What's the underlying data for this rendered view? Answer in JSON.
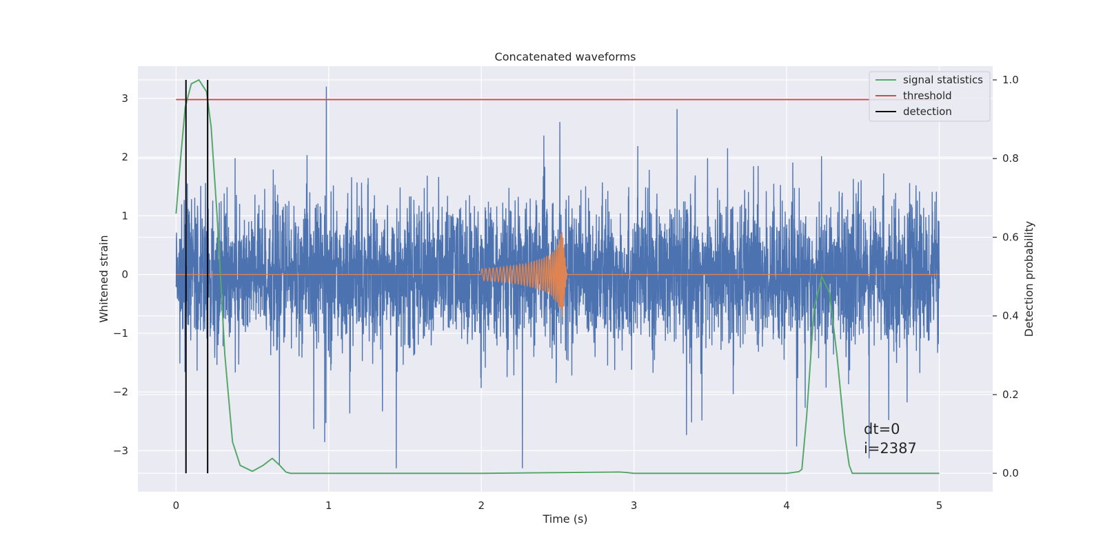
{
  "chart_data": {
    "type": "line",
    "title": "Concatenated waveforms",
    "xlabel": "Time (s)",
    "ylabel": "Whitened strain",
    "y2label": "Detection probability",
    "xlim": [
      -0.25,
      5.35
    ],
    "ylim": [
      -3.7,
      3.55
    ],
    "y2lim": [
      -0.047,
      1.035
    ],
    "x_ticks": [
      0,
      1,
      2,
      3,
      4,
      5
    ],
    "y_ticks": [
      -3,
      -2,
      -1,
      0,
      1,
      2,
      3
    ],
    "y2_ticks": [
      0.0,
      0.2,
      0.4,
      0.6,
      0.8,
      1.0
    ],
    "y_tick_labels": [
      "−3",
      "−2",
      "−1",
      "0",
      "1",
      "2",
      "3"
    ],
    "y2_tick_labels": [
      "0.0",
      "0.2",
      "0.4",
      "0.6",
      "0.8",
      "1.0"
    ],
    "grid": true,
    "legend_position": "top-right",
    "colors": {
      "noise": "#4c72b0",
      "waveform": "#dd8452",
      "signal_statistics": "#55a868",
      "threshold": "#c44e52",
      "detection": "#000000",
      "plot_background": "#eaeaf2",
      "grid": "#ffffff"
    },
    "series": [
      {
        "name": "",
        "kind": "whitened noise",
        "axis": "left",
        "x_range": [
          0,
          5
        ],
        "typical_amplitude": 0.6,
        "envelope": [
          -3.3,
          3.2
        ]
      },
      {
        "name": "",
        "kind": "injected chirp waveform",
        "axis": "left",
        "x": [
          0,
          2.0,
          2.1,
          2.2,
          2.3,
          2.4,
          2.45,
          2.5,
          2.52,
          2.53,
          2.56,
          5
        ],
        "amplitude": [
          0,
          0.1,
          0.12,
          0.15,
          0.2,
          0.28,
          0.35,
          0.5,
          0.7,
          0.78,
          0.05,
          0
        ]
      },
      {
        "name": "signal statistics",
        "axis": "right",
        "x": [
          0.0,
          0.03,
          0.06,
          0.1,
          0.15,
          0.2,
          0.23,
          0.27,
          0.32,
          0.37,
          0.42,
          0.5,
          0.57,
          0.63,
          0.68,
          0.72,
          0.75,
          1.0,
          2.0,
          2.9,
          2.95,
          3.0,
          4.0,
          4.08,
          4.1,
          4.13,
          4.18,
          4.23,
          4.28,
          4.33,
          4.38,
          4.41,
          4.43,
          5.0
        ],
        "y": [
          0.66,
          0.8,
          0.93,
          0.99,
          1.0,
          0.97,
          0.88,
          0.65,
          0.3,
          0.08,
          0.02,
          0.005,
          0.02,
          0.038,
          0.02,
          0.003,
          0.0,
          0.0,
          0.0,
          0.003,
          0.002,
          0.0,
          0.0,
          0.004,
          0.01,
          0.14,
          0.42,
          0.5,
          0.46,
          0.3,
          0.1,
          0.02,
          0.0,
          0.0
        ]
      },
      {
        "name": "threshold",
        "axis": "right",
        "x": [
          0,
          5
        ],
        "y": [
          0.95,
          0.95
        ]
      },
      {
        "name": "detection",
        "axis": "right",
        "x": [
          0.065,
          0.207
        ],
        "y": [
          0.0,
          1.0
        ]
      }
    ],
    "annotations": [
      "dt=0",
      "i=2387"
    ]
  }
}
